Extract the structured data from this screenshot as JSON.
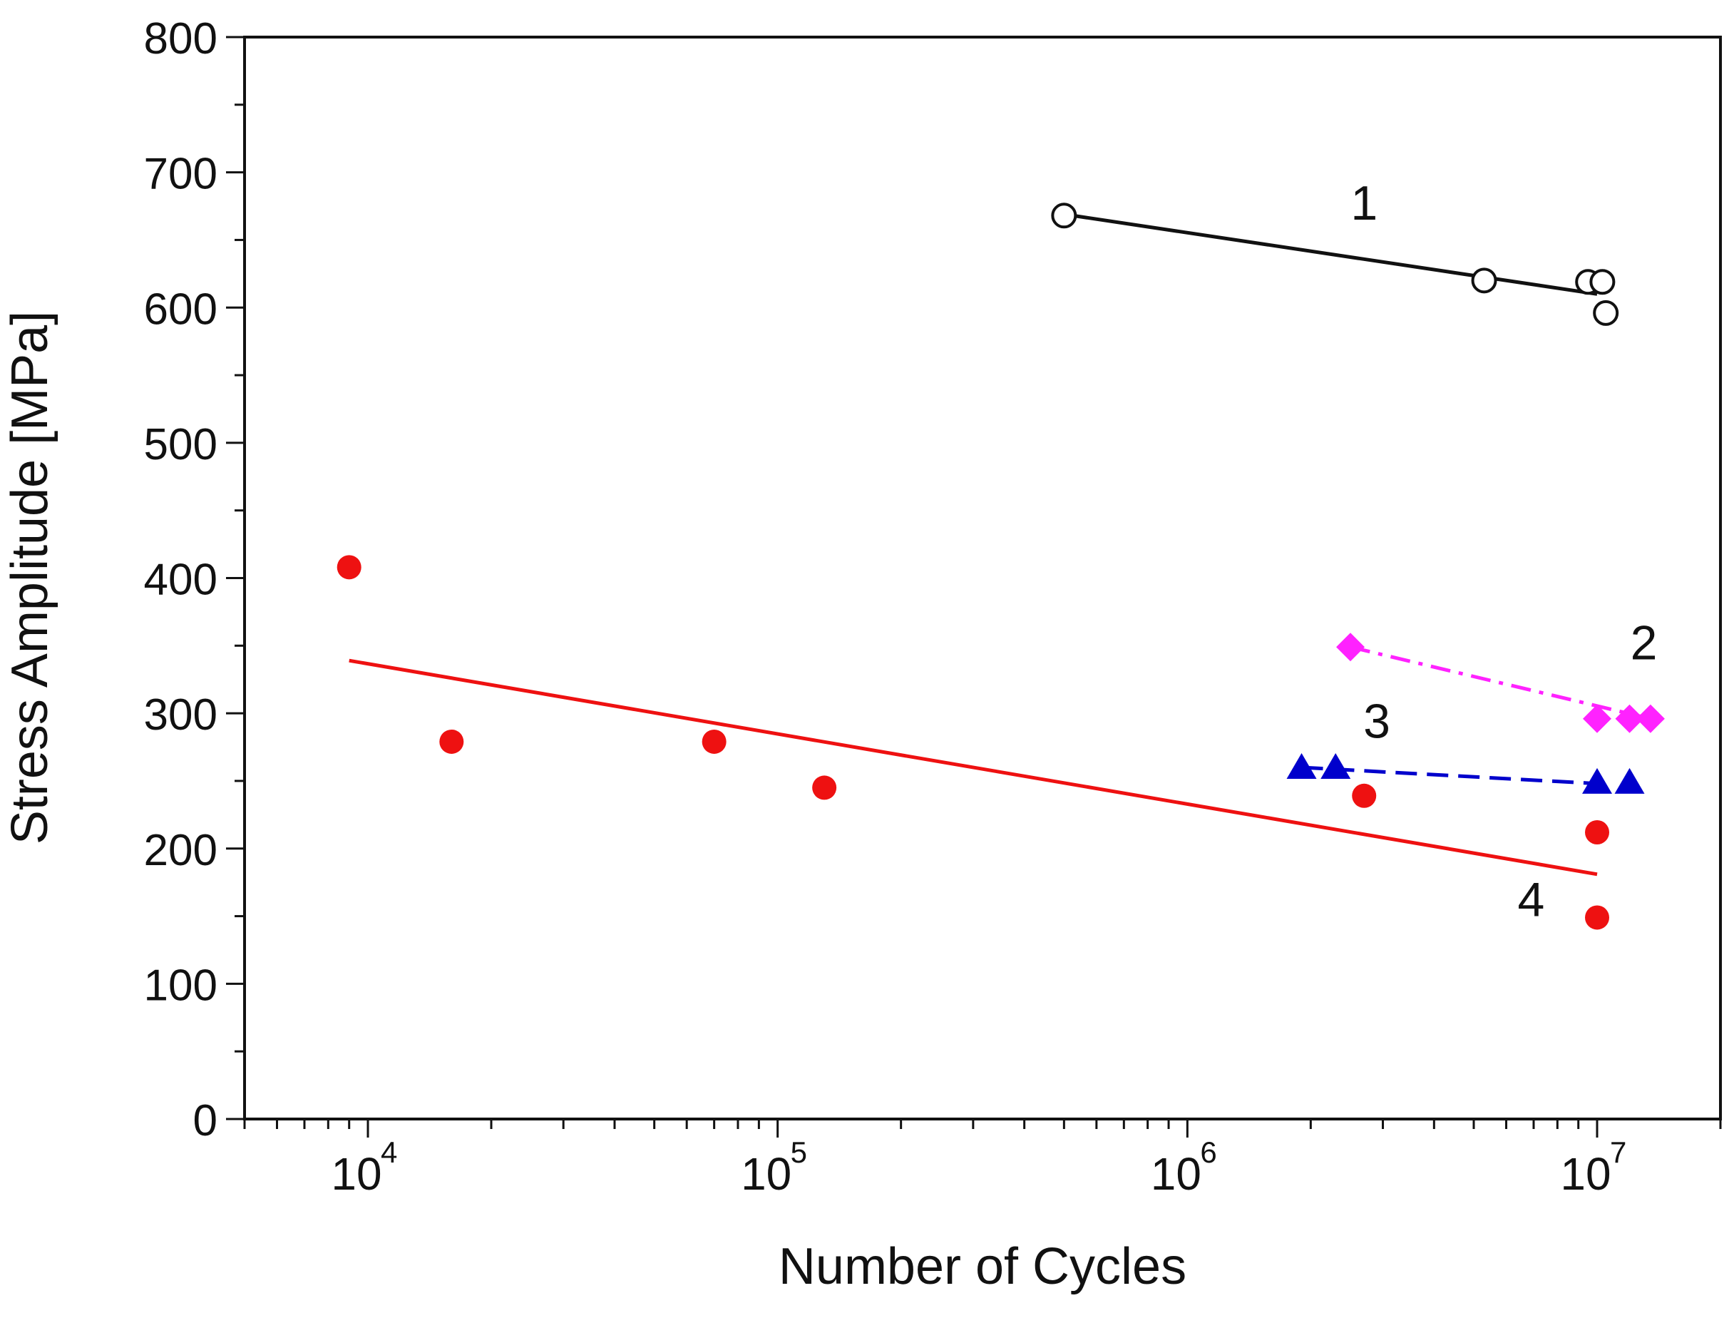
{
  "chart_data": {
    "type": "scatter",
    "xlabel": "Number of Cycles",
    "ylabel": "Stress Amplitude [MPa]",
    "x_scale": "log",
    "xlim": [
      5000,
      20000000
    ],
    "ylim": [
      0,
      800
    ],
    "y_ticks": [
      0,
      100,
      200,
      300,
      400,
      500,
      600,
      700,
      800
    ],
    "y_tick_labels": [
      "0",
      "100",
      "200",
      "300",
      "400",
      "500",
      "600",
      "700",
      "800"
    ],
    "x_ticks": [
      10000,
      100000,
      1000000,
      10000000
    ],
    "x_tick_labels": [
      {
        "base": "10",
        "exp": "4"
      },
      {
        "base": "10",
        "exp": "5"
      },
      {
        "base": "10",
        "exp": "6"
      },
      {
        "base": "10",
        "exp": "7"
      }
    ],
    "grid": false,
    "legend": "none",
    "series": [
      {
        "label": "1",
        "color": "#111111",
        "marker": "open-circle",
        "line_style": "solid",
        "points": [
          [
            500000,
            668
          ],
          [
            5300000,
            620
          ],
          [
            9500000,
            619
          ],
          [
            10300000,
            619
          ],
          [
            10500000,
            596
          ]
        ],
        "fit": [
          [
            500000,
            669
          ],
          [
            10000000,
            610
          ]
        ],
        "label_at": [
          2700000,
          665
        ]
      },
      {
        "label": "2",
        "color": "#ff22ff",
        "marker": "filled-diamond",
        "line_style": "dash-dot",
        "points": [
          [
            2500000,
            349
          ],
          [
            10000000,
            296
          ],
          [
            12000000,
            296
          ],
          [
            13500000,
            296
          ]
        ],
        "fit": [
          [
            2500000,
            349
          ],
          [
            13500000,
            296
          ]
        ],
        "label_at": [
          13000000,
          340
        ]
      },
      {
        "label": "3",
        "color": "#0000cc",
        "marker": "filled-triangle",
        "line_style": "dashed",
        "points": [
          [
            1900000,
            260
          ],
          [
            2300000,
            260
          ],
          [
            10000000,
            249
          ],
          [
            12000000,
            249
          ]
        ],
        "fit": [
          [
            1900000,
            260
          ],
          [
            10000000,
            248
          ]
        ],
        "label_at": [
          2900000,
          282
        ]
      },
      {
        "label": "4",
        "color": "#ee1111",
        "marker": "filled-circle",
        "line_style": "solid",
        "points": [
          [
            9000,
            408
          ],
          [
            16000,
            279
          ],
          [
            70000,
            279
          ],
          [
            130000,
            245
          ],
          [
            2700000,
            239
          ],
          [
            10000000,
            212
          ],
          [
            10000000,
            149
          ]
        ],
        "fit": [
          [
            9000,
            339
          ],
          [
            10000000,
            181
          ]
        ],
        "label_at": [
          6900000,
          150
        ]
      }
    ]
  }
}
